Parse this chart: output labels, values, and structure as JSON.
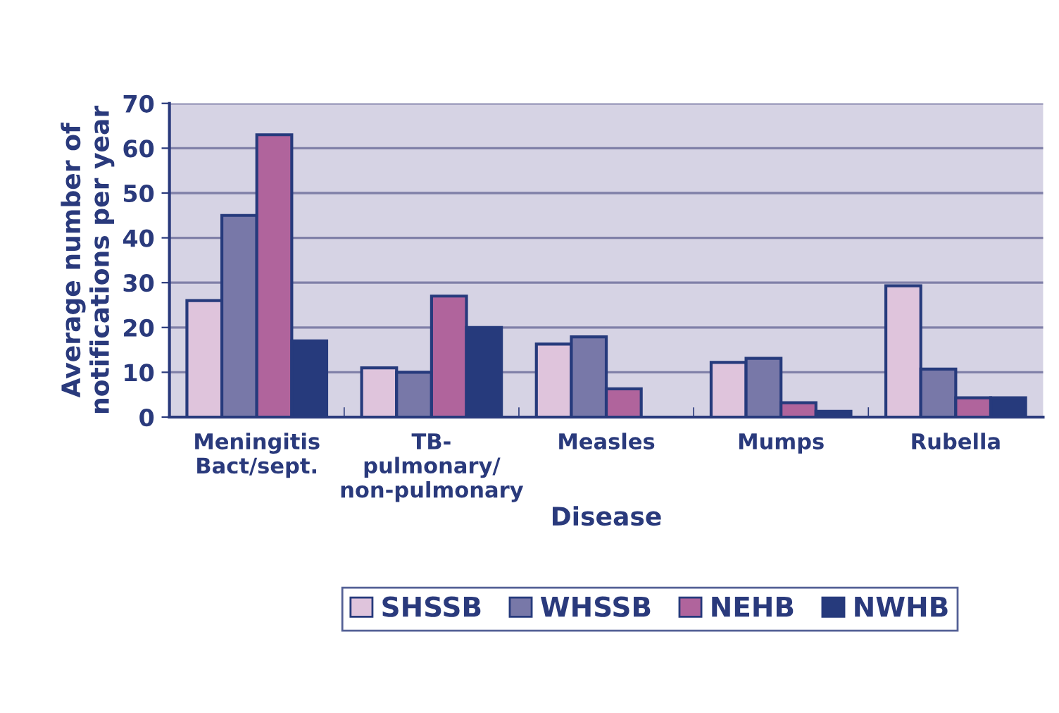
{
  "chart_data": {
    "type": "bar",
    "xlabel": "Disease",
    "ylabel": "Average number of\nnotifications per year",
    "categories": [
      "Meningitis\nBact/sept.",
      "TB-\npulmonary/\nnon-pulmonary",
      "Measles",
      "Mumps",
      "Rubella"
    ],
    "series": [
      {
        "name": "SHSSB",
        "color": "#dfc4dc",
        "values": [
          26,
          11,
          16.3,
          12.2,
          29.3
        ]
      },
      {
        "name": "WHSSB",
        "color": "#7878a8",
        "values": [
          45,
          10,
          17.9,
          13.1,
          10.7
        ]
      },
      {
        "name": "NEHB",
        "color": "#b0649c",
        "values": [
          63,
          27,
          6.3,
          3.2,
          4.3
        ]
      },
      {
        "name": "NWHB",
        "color": "#263a7c",
        "values": [
          17,
          20,
          0,
          1.3,
          4.3
        ]
      }
    ],
    "ylim": [
      0,
      70
    ],
    "yticks": [
      0,
      10,
      20,
      30,
      40,
      50,
      60,
      70
    ],
    "grid": "y",
    "legend": "bottom"
  }
}
